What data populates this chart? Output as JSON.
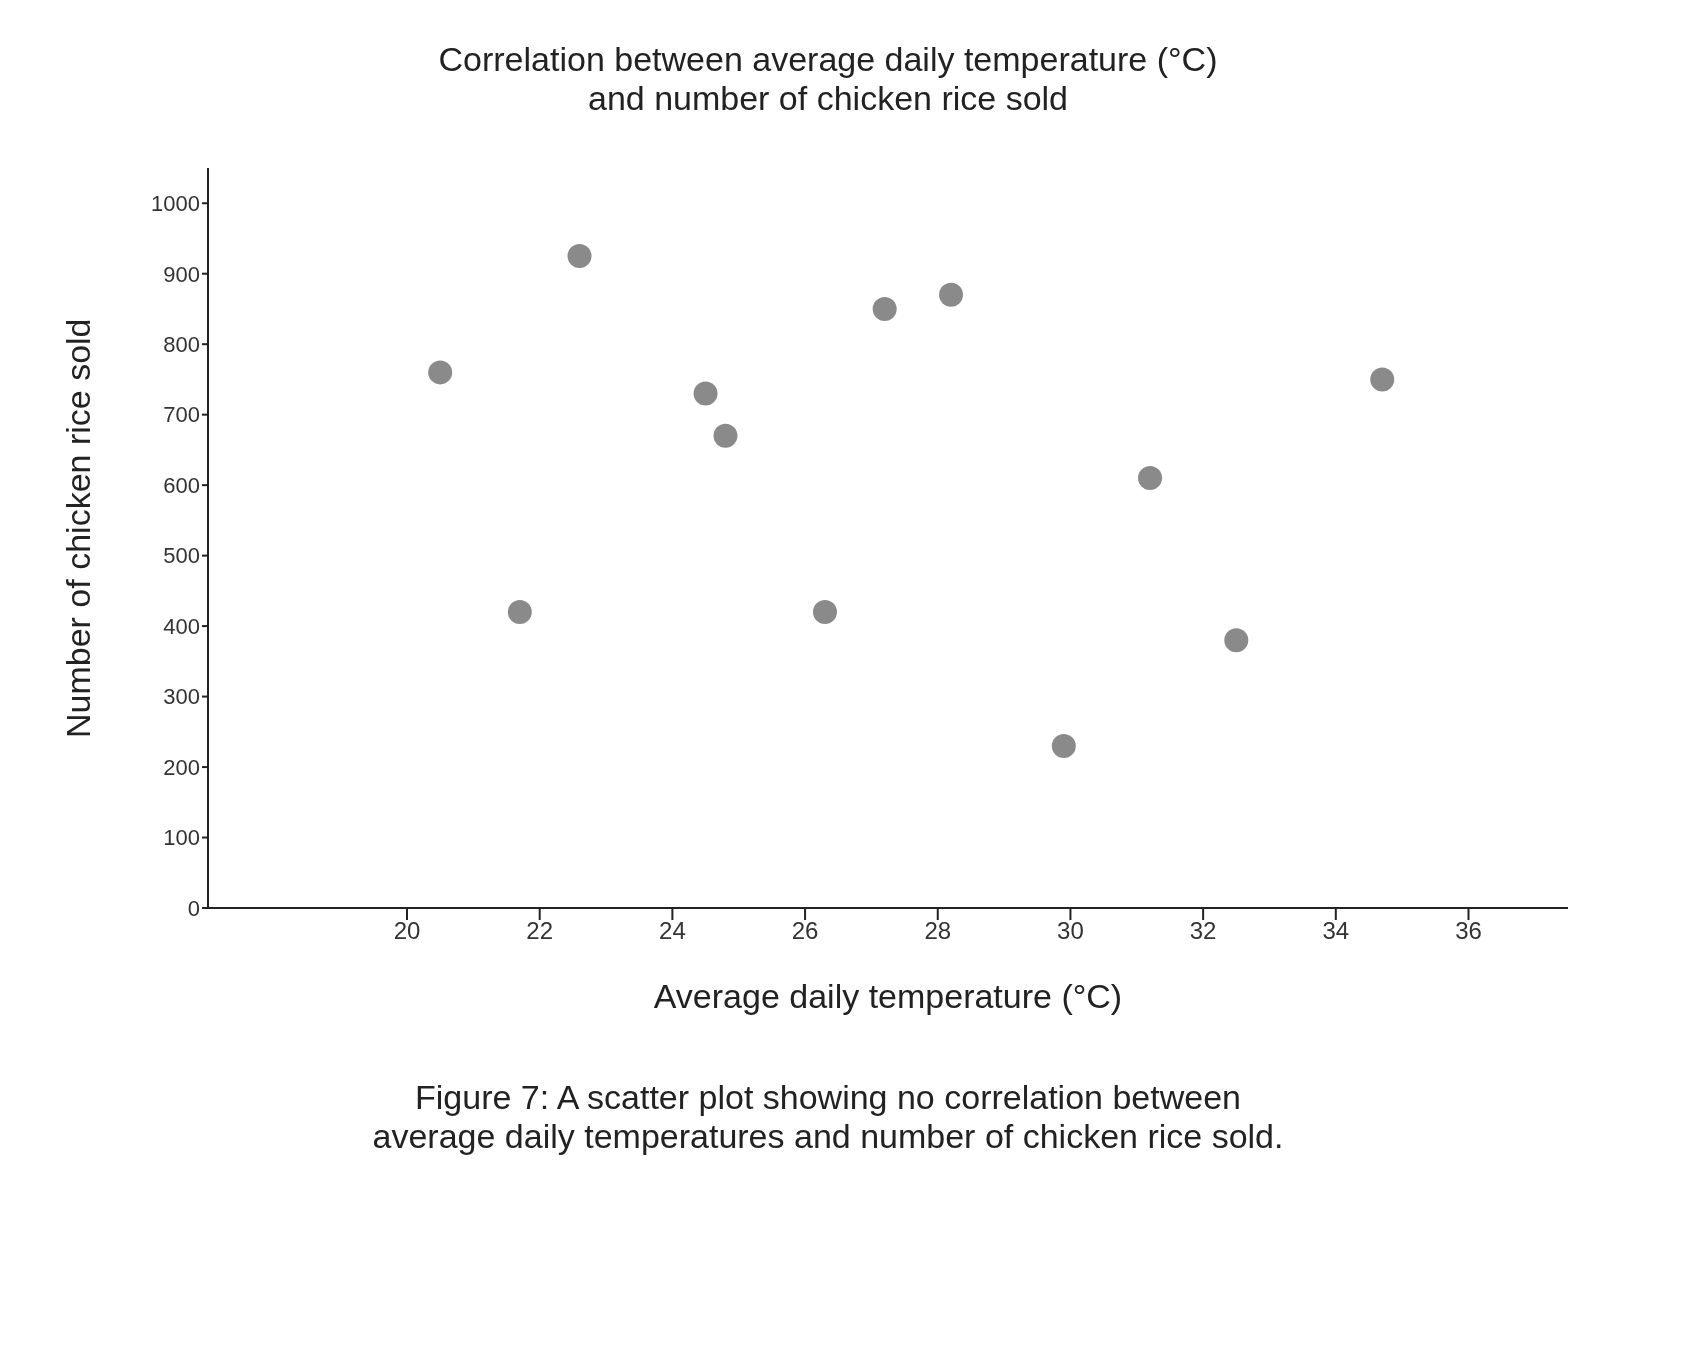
{
  "chart_data": {
    "type": "scatter",
    "title": "Correlation between average daily temperature (°C)\nand number of chicken rice sold",
    "xlabel": "Average daily temperature (°C)",
    "ylabel": "Number of chicken rice sold",
    "annotations": [
      "Figure 7: A scatter plot showing no correlation between\naverage daily temperatures and number of chicken rice sold."
    ],
    "x": [
      20.5,
      21.7,
      22.6,
      24.5,
      24.8,
      26.3,
      27.2,
      28.2,
      29.9,
      31.2,
      32.5,
      34.7
    ],
    "series": [
      {
        "color": "#8a8a8a",
        "values": [
          760,
          420,
          925,
          730,
          670,
          420,
          850,
          870,
          230,
          610,
          380,
          750
        ]
      }
    ],
    "xlim": [
      17,
      37.5
    ],
    "ylim": [
      0,
      1050
    ],
    "xticks": [
      20,
      22,
      24,
      26,
      28,
      30,
      32,
      34,
      36
    ],
    "yticks": [
      0,
      100,
      200,
      300,
      400,
      500,
      600,
      700,
      800,
      900,
      1000
    ],
    "marker": "circle",
    "grid": false,
    "legend": false
  }
}
